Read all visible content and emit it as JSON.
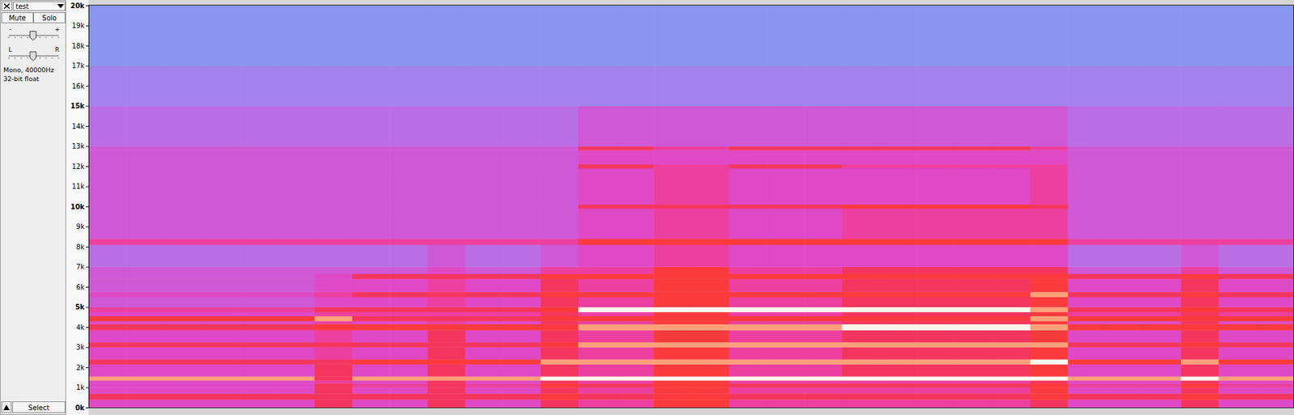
{
  "track_panel": {
    "name": "test",
    "buttons": [
      "Mute",
      "Solo"
    ],
    "gain_labels": [
      "-",
      "+"
    ],
    "pan_labels": [
      "L",
      "R"
    ],
    "info": [
      "Mono, 40000Hz",
      "32-bit float"
    ],
    "select": "Select"
  },
  "chart_data": {
    "type": "heatmap",
    "tick_labels": "y",
    "ylim": [
      0,
      20000
    ],
    "yticks": [
      {
        "value": 0,
        "label": "0k"
      },
      {
        "value": 1000,
        "label": "1k"
      },
      {
        "value": 2000,
        "label": "2k"
      },
      {
        "value": 3000,
        "label": "3k"
      },
      {
        "value": 4000,
        "label": "4k"
      },
      {
        "value": 5000,
        "label": "5k"
      },
      {
        "value": 6000,
        "label": "6k"
      },
      {
        "value": 7000,
        "label": "7k"
      },
      {
        "value": 8000,
        "label": "8k"
      },
      {
        "value": 9000,
        "label": "9k"
      },
      {
        "value": 10000,
        "label": "10k"
      },
      {
        "value": 11000,
        "label": "11k"
      },
      {
        "value": 12000,
        "label": "12k"
      },
      {
        "value": 13000,
        "label": "13k"
      },
      {
        "value": 14000,
        "label": "14k"
      },
      {
        "value": 15000,
        "label": "15k"
      },
      {
        "value": 16000,
        "label": "16k"
      },
      {
        "value": 17000,
        "label": "17k"
      },
      {
        "value": 18000,
        "label": "18k"
      },
      {
        "value": 19000,
        "label": "19k"
      },
      {
        "value": 20000,
        "label": "20k"
      }
    ],
    "y_bins": [
      0,
      400,
      700,
      1000,
      1200,
      1350,
      1550,
      2150,
      2400,
      3000,
      3250,
      3850,
      4150,
      4300,
      4550,
      4750,
      5000,
      5500,
      5750,
      6400,
      6650,
      7000,
      8100,
      8400,
      9900,
      10100,
      11900,
      12100,
      12800,
      13000,
      15000,
      17000,
      20000
    ],
    "zlim": [
      0,
      10
    ],
    "cells": [
      [
        5,
        5,
        5,
        5,
        5,
        5,
        7,
        5,
        5,
        7,
        5,
        5,
        7,
        6,
        6,
        8,
        8,
        6,
        6,
        6,
        6,
        6,
        6,
        6,
        6,
        7,
        5,
        5,
        5,
        7,
        5,
        5
      ],
      [
        7,
        7,
        7,
        7,
        7,
        7,
        7,
        7,
        7,
        7,
        7,
        7,
        8,
        7,
        7,
        8,
        8,
        7,
        7,
        7,
        7,
        7,
        7,
        7,
        7,
        8,
        7,
        7,
        7,
        8,
        7,
        7
      ],
      [
        5,
        5,
        5,
        5,
        5,
        5,
        7,
        5,
        5,
        7,
        5,
        5,
        7,
        6,
        6,
        8,
        8,
        6,
        6,
        6,
        6,
        6,
        6,
        6,
        6,
        8,
        5,
        5,
        5,
        7,
        5,
        5
      ],
      [
        5,
        5,
        5,
        5,
        5,
        5,
        7,
        6,
        6,
        7,
        6,
        6,
        8,
        7,
        7,
        8,
        8,
        7,
        7,
        7,
        7,
        7,
        7,
        7,
        7,
        8,
        6,
        6,
        6,
        8,
        6,
        6
      ],
      [
        5,
        5,
        5,
        5,
        5,
        5,
        6,
        5,
        5,
        7,
        5,
        5,
        7,
        6,
        6,
        8,
        8,
        6,
        6,
        6,
        6,
        6,
        6,
        6,
        6,
        7,
        5,
        5,
        5,
        7,
        5,
        5
      ],
      [
        9,
        9,
        9,
        9,
        9,
        9,
        7,
        9,
        9,
        9,
        9,
        9,
        10,
        10,
        10,
        10,
        10,
        10,
        10,
        10,
        10,
        10,
        10,
        10,
        10,
        10,
        9,
        9,
        9,
        10,
        9,
        9
      ],
      [
        5,
        5,
        5,
        5,
        5,
        5,
        7,
        5,
        5,
        7,
        5,
        5,
        7,
        6,
        6,
        8,
        8,
        6,
        6,
        6,
        7,
        7,
        7,
        7,
        7,
        8,
        5,
        5,
        5,
        7,
        5,
        5
      ],
      [
        7,
        7,
        7,
        7,
        7,
        7,
        7,
        8,
        8,
        8,
        8,
        8,
        9,
        9,
        9,
        9,
        9,
        9,
        9,
        9,
        9,
        9,
        9,
        9,
        9,
        10,
        8,
        8,
        8,
        9,
        8,
        8
      ],
      [
        5,
        5,
        5,
        5,
        5,
        5,
        6,
        5,
        5,
        7,
        5,
        5,
        7,
        6,
        6,
        8,
        8,
        6,
        6,
        6,
        7,
        7,
        7,
        7,
        7,
        8,
        5,
        5,
        5,
        7,
        5,
        5
      ],
      [
        7,
        7,
        7,
        7,
        7,
        7,
        7,
        7,
        7,
        7,
        7,
        7,
        8,
        9,
        9,
        9,
        9,
        9,
        9,
        9,
        9,
        9,
        9,
        9,
        9,
        9,
        7,
        7,
        7,
        8,
        7,
        7
      ],
      [
        5,
        5,
        5,
        5,
        5,
        5,
        6,
        5,
        5,
        7,
        5,
        5,
        7,
        6,
        6,
        8,
        8,
        6,
        6,
        6,
        7,
        7,
        7,
        7,
        7,
        8,
        5,
        5,
        5,
        7,
        5,
        5
      ],
      [
        7,
        7,
        7,
        7,
        7,
        7,
        8,
        8,
        8,
        8,
        8,
        8,
        8,
        9,
        9,
        9,
        9,
        9,
        9,
        9,
        10,
        10,
        10,
        10,
        10,
        9,
        8,
        8,
        8,
        8,
        8,
        8
      ],
      [
        5,
        5,
        5,
        5,
        5,
        5,
        6,
        5,
        5,
        6,
        5,
        5,
        7,
        6,
        6,
        8,
        8,
        6,
        6,
        6,
        7,
        7,
        7,
        7,
        7,
        8,
        5,
        5,
        5,
        7,
        5,
        5
      ],
      [
        8,
        8,
        8,
        8,
        8,
        8,
        9,
        7,
        7,
        7,
        7,
        7,
        8,
        8,
        8,
        8,
        8,
        8,
        8,
        8,
        8,
        8,
        8,
        8,
        8,
        9,
        8,
        8,
        8,
        8,
        8,
        8
      ],
      [
        5,
        5,
        5,
        5,
        5,
        5,
        6,
        6,
        6,
        6,
        6,
        6,
        7,
        6,
        6,
        8,
        8,
        6,
        6,
        6,
        7,
        7,
        7,
        7,
        7,
        8,
        6,
        6,
        6,
        7,
        6,
        6
      ],
      [
        6,
        6,
        6,
        6,
        6,
        6,
        7,
        7,
        7,
        7,
        7,
        7,
        8,
        10,
        10,
        10,
        10,
        10,
        10,
        10,
        10,
        10,
        10,
        10,
        10,
        9,
        7,
        7,
        7,
        8,
        7,
        7
      ],
      [
        4,
        4,
        4,
        4,
        4,
        4,
        5,
        5,
        5,
        6,
        5,
        5,
        7,
        6,
        6,
        8,
        8,
        6,
        6,
        6,
        7,
        7,
        7,
        7,
        7,
        8,
        5,
        5,
        5,
        7,
        5,
        5
      ],
      [
        5,
        5,
        5,
        5,
        5,
        5,
        6,
        7,
        7,
        7,
        7,
        7,
        8,
        8,
        8,
        8,
        8,
        8,
        8,
        8,
        8,
        8,
        8,
        8,
        8,
        9,
        7,
        7,
        7,
        8,
        7,
        7
      ],
      [
        4,
        4,
        4,
        4,
        4,
        4,
        5,
        5,
        5,
        6,
        5,
        5,
        7,
        6,
        6,
        8,
        8,
        6,
        6,
        6,
        7,
        7,
        7,
        7,
        7,
        8,
        5,
        5,
        5,
        7,
        5,
        5
      ],
      [
        4,
        4,
        4,
        4,
        4,
        4,
        5,
        7,
        7,
        7,
        7,
        7,
        8,
        8,
        8,
        8,
        8,
        8,
        8,
        8,
        8,
        8,
        8,
        8,
        8,
        8,
        7,
        7,
        7,
        8,
        7,
        7
      ],
      [
        4,
        4,
        4,
        4,
        4,
        4,
        4,
        4,
        4,
        5,
        4,
        4,
        6,
        6,
        6,
        8,
        8,
        6,
        6,
        6,
        7,
        7,
        7,
        7,
        7,
        7,
        4,
        4,
        4,
        6,
        4,
        4
      ],
      [
        3,
        3,
        3,
        3,
        3,
        3,
        3,
        3,
        3,
        4,
        3,
        3,
        4,
        5,
        5,
        6,
        6,
        5,
        5,
        5,
        5,
        5,
        5,
        5,
        5,
        5,
        3,
        3,
        3,
        4,
        3,
        3
      ],
      [
        6,
        6,
        6,
        6,
        6,
        6,
        6,
        6,
        6,
        6,
        6,
        6,
        6,
        8,
        8,
        8,
        8,
        8,
        8,
        8,
        8,
        8,
        8,
        8,
        8,
        8,
        6,
        6,
        6,
        6,
        6,
        6
      ],
      [
        4,
        4,
        4,
        4,
        4,
        4,
        4,
        4,
        4,
        4,
        4,
        4,
        4,
        5,
        5,
        6,
        6,
        5,
        5,
        5,
        6,
        6,
        6,
        6,
        6,
        6,
        4,
        4,
        4,
        4,
        4,
        4
      ],
      [
        4,
        4,
        4,
        4,
        4,
        4,
        4,
        4,
        4,
        4,
        4,
        4,
        4,
        7,
        7,
        7,
        7,
        7,
        7,
        7,
        8,
        8,
        8,
        8,
        8,
        7,
        4,
        4,
        4,
        4,
        4,
        4
      ],
      [
        4,
        4,
        4,
        4,
        4,
        4,
        4,
        4,
        4,
        4,
        4,
        4,
        4,
        5,
        5,
        6,
        6,
        5,
        5,
        5,
        5,
        5,
        5,
        5,
        5,
        6,
        4,
        4,
        4,
        4,
        4,
        4
      ],
      [
        4,
        4,
        4,
        4,
        4,
        4,
        4,
        4,
        4,
        4,
        4,
        4,
        4,
        7,
        7,
        6,
        6,
        7,
        7,
        7,
        6,
        6,
        6,
        6,
        6,
        6,
        4,
        4,
        4,
        4,
        4,
        4
      ],
      [
        4,
        4,
        4,
        4,
        4,
        4,
        4,
        4,
        4,
        4,
        4,
        4,
        4,
        5,
        5,
        5,
        5,
        5,
        5,
        5,
        5,
        5,
        5,
        5,
        5,
        5,
        4,
        4,
        4,
        4,
        4,
        4
      ],
      [
        4,
        4,
        4,
        4,
        4,
        4,
        4,
        4,
        4,
        4,
        4,
        4,
        4,
        7,
        7,
        6,
        6,
        7,
        7,
        7,
        7,
        7,
        7,
        7,
        7,
        6,
        4,
        4,
        4,
        4,
        4,
        4
      ],
      [
        3,
        3,
        3,
        3,
        3,
        3,
        3,
        3,
        3,
        3,
        3,
        3,
        3,
        4,
        4,
        4,
        4,
        4,
        4,
        4,
        4,
        4,
        4,
        4,
        4,
        4,
        3,
        3,
        3,
        3,
        3,
        3
      ],
      [
        2,
        2,
        2,
        2,
        2,
        2,
        2,
        2,
        2,
        2,
        2,
        2,
        2,
        2,
        2,
        2,
        2,
        2,
        2,
        2,
        2,
        2,
        2,
        2,
        2,
        2,
        2,
        2,
        2,
        2,
        2,
        2
      ],
      [
        1,
        1,
        1,
        1,
        1,
        1,
        1,
        1,
        1,
        1,
        1,
        1,
        1,
        1,
        1,
        1,
        1,
        1,
        1,
        1,
        1,
        1,
        1,
        1,
        1,
        1,
        1,
        1,
        1,
        1,
        1,
        1
      ]
    ]
  }
}
